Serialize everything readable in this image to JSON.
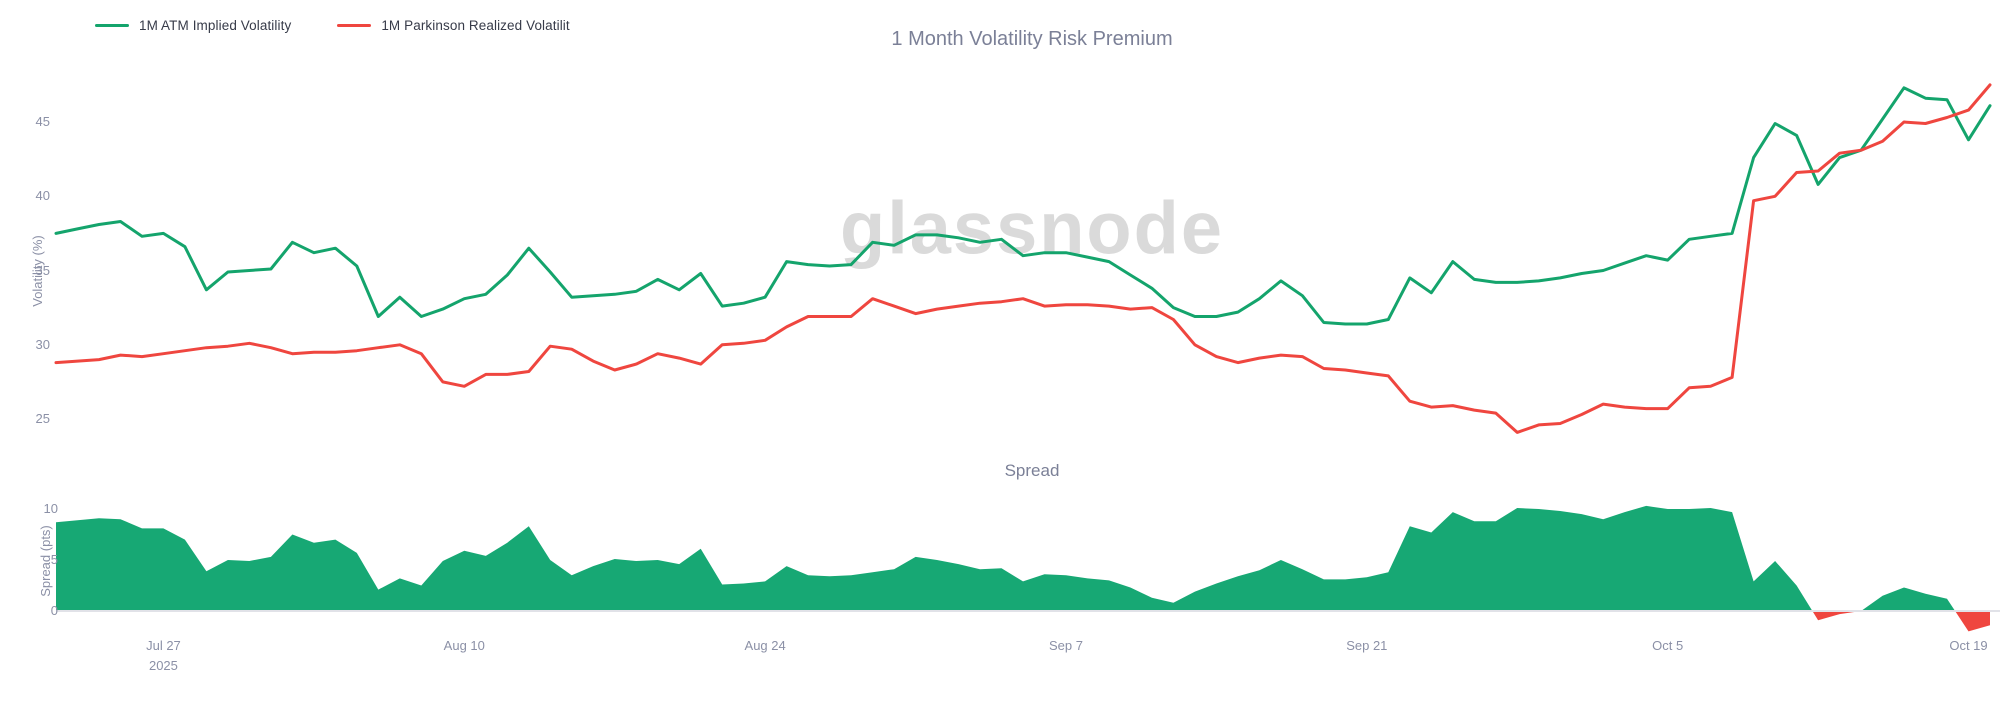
{
  "titles": {
    "main": "1 Month Volatility Risk Premium",
    "spread": "Spread"
  },
  "legend": {
    "items": [
      {
        "label": "1M ATM Implied Volatility",
        "color": "#14a46c"
      },
      {
        "label": "1M Parkinson Realized Volatilit",
        "color": "#ef463f"
      }
    ]
  },
  "axes": {
    "vol_axis_title": "Volatility (%)",
    "spread_axis_title": "Spread (pts)",
    "x_first_tick_year": "2025"
  },
  "watermark": "glassnode",
  "colors": {
    "implied_line": "#14a46c",
    "realized_line": "#ef463f",
    "spread_positive_fill": "#17a874",
    "spread_negative_fill": "#ef463f",
    "axis_text": "#8b90a6",
    "title_text": "#7b8097",
    "legend_text": "#373b49",
    "baseline": "#e1e2e8",
    "watermark_text": "#dadada",
    "background": "#ffffff"
  },
  "chart_data": [
    {
      "type": "line",
      "title": "1 Month Volatility Risk Premium",
      "xlabel": "",
      "ylabel": "Volatility (%)",
      "ylim": [
        23,
        48
      ],
      "y_ticks": [
        45,
        40,
        35,
        30,
        25
      ],
      "x_frequency": "daily",
      "x_tick_labels": [
        "Jul 27",
        "Aug 10",
        "Aug 24",
        "Sep 7",
        "Sep 21",
        "Oct 5",
        "Oct 19"
      ],
      "x_tick_sublabels": [
        "2025",
        "",
        "",
        "",
        "",
        "",
        ""
      ],
      "x_tick_day_index": [
        5,
        19,
        33,
        47,
        61,
        75,
        89
      ],
      "grid": false,
      "legend_position": "top-left",
      "series": [
        {
          "name": "1M ATM Implied Volatility",
          "color": "#14a46c",
          "values": [
            37.5,
            37.8,
            38.1,
            38.3,
            37.3,
            37.5,
            36.6,
            33.7,
            34.9,
            35.0,
            35.1,
            36.9,
            36.2,
            36.5,
            35.3,
            31.9,
            33.2,
            31.9,
            32.4,
            33.1,
            33.4,
            34.7,
            36.5,
            34.9,
            33.2,
            33.3,
            33.4,
            33.6,
            34.4,
            33.7,
            34.8,
            32.6,
            32.8,
            33.2,
            35.6,
            35.4,
            35.3,
            35.4,
            36.9,
            36.7,
            37.4,
            37.4,
            37.2,
            36.9,
            37.1,
            36.0,
            36.2,
            36.2,
            35.9,
            35.6,
            34.7,
            33.8,
            32.5,
            31.9,
            31.9,
            32.2,
            33.1,
            34.3,
            33.3,
            31.5,
            31.4,
            31.4,
            31.7,
            34.5,
            33.5,
            35.6,
            34.4,
            34.2,
            34.2,
            34.3,
            34.5,
            34.8,
            35.0,
            35.5,
            36.0,
            35.7,
            37.1,
            37.3,
            37.5,
            42.6,
            44.9,
            44.1,
            40.8,
            42.6,
            43.1,
            45.2,
            47.3,
            46.6,
            46.5,
            43.8,
            46.1
          ]
        },
        {
          "name": "1M Parkinson Realized Volatilit",
          "color": "#ef463f",
          "values": [
            28.8,
            28.9,
            29.0,
            29.3,
            29.2,
            29.4,
            29.6,
            29.8,
            29.9,
            30.1,
            29.8,
            29.4,
            29.5,
            29.5,
            29.6,
            29.8,
            30.0,
            29.4,
            27.5,
            27.2,
            28.0,
            28.0,
            28.2,
            29.9,
            29.7,
            28.9,
            28.3,
            28.7,
            29.4,
            29.1,
            28.7,
            30.0,
            30.1,
            30.3,
            31.2,
            31.9,
            31.9,
            31.9,
            33.1,
            32.6,
            32.1,
            32.4,
            32.6,
            32.8,
            32.9,
            33.1,
            32.6,
            32.7,
            32.7,
            32.6,
            32.4,
            32.5,
            31.7,
            30.0,
            29.2,
            28.8,
            29.1,
            29.3,
            29.2,
            28.4,
            28.3,
            28.1,
            27.9,
            26.2,
            25.8,
            25.9,
            25.6,
            25.4,
            24.1,
            24.6,
            24.7,
            25.3,
            26.0,
            25.8,
            25.7,
            25.7,
            27.1,
            27.2,
            27.8,
            39.7,
            40.0,
            41.6,
            41.7,
            42.9,
            43.1,
            43.7,
            45.0,
            44.9,
            45.3,
            45.8,
            47.5
          ]
        }
      ]
    },
    {
      "type": "area",
      "title": "Spread",
      "xlabel": "",
      "ylabel": "Spread (pts)",
      "ylim": [
        -3,
        12
      ],
      "y_ticks": [
        10,
        5,
        0
      ],
      "x_frequency": "daily",
      "grid": false,
      "positive_color": "#17a874",
      "negative_color": "#ef463f",
      "values": [
        8.7,
        8.9,
        9.1,
        9.0,
        8.1,
        8.1,
        7.0,
        3.9,
        5.0,
        4.9,
        5.3,
        7.5,
        6.7,
        7.0,
        5.7,
        2.1,
        3.2,
        2.5,
        4.9,
        5.9,
        5.4,
        6.7,
        8.3,
        5.0,
        3.5,
        4.4,
        5.1,
        4.9,
        5.0,
        4.6,
        6.1,
        2.6,
        2.7,
        2.9,
        4.4,
        3.5,
        3.4,
        3.5,
        3.8,
        4.1,
        5.3,
        5.0,
        4.6,
        4.1,
        4.2,
        2.9,
        3.6,
        3.5,
        3.2,
        3.0,
        2.3,
        1.3,
        0.8,
        1.9,
        2.7,
        3.4,
        4.0,
        5.0,
        4.1,
        3.1,
        3.1,
        3.3,
        3.8,
        8.3,
        7.7,
        9.7,
        8.8,
        8.8,
        10.1,
        10.0,
        9.8,
        9.5,
        9.0,
        9.7,
        10.3,
        10.0,
        10.0,
        10.1,
        9.7,
        2.9,
        4.9,
        2.5,
        -0.9,
        -0.3,
        0.0,
        1.5,
        2.3,
        1.7,
        1.2,
        -2.0,
        -1.4
      ]
    }
  ]
}
